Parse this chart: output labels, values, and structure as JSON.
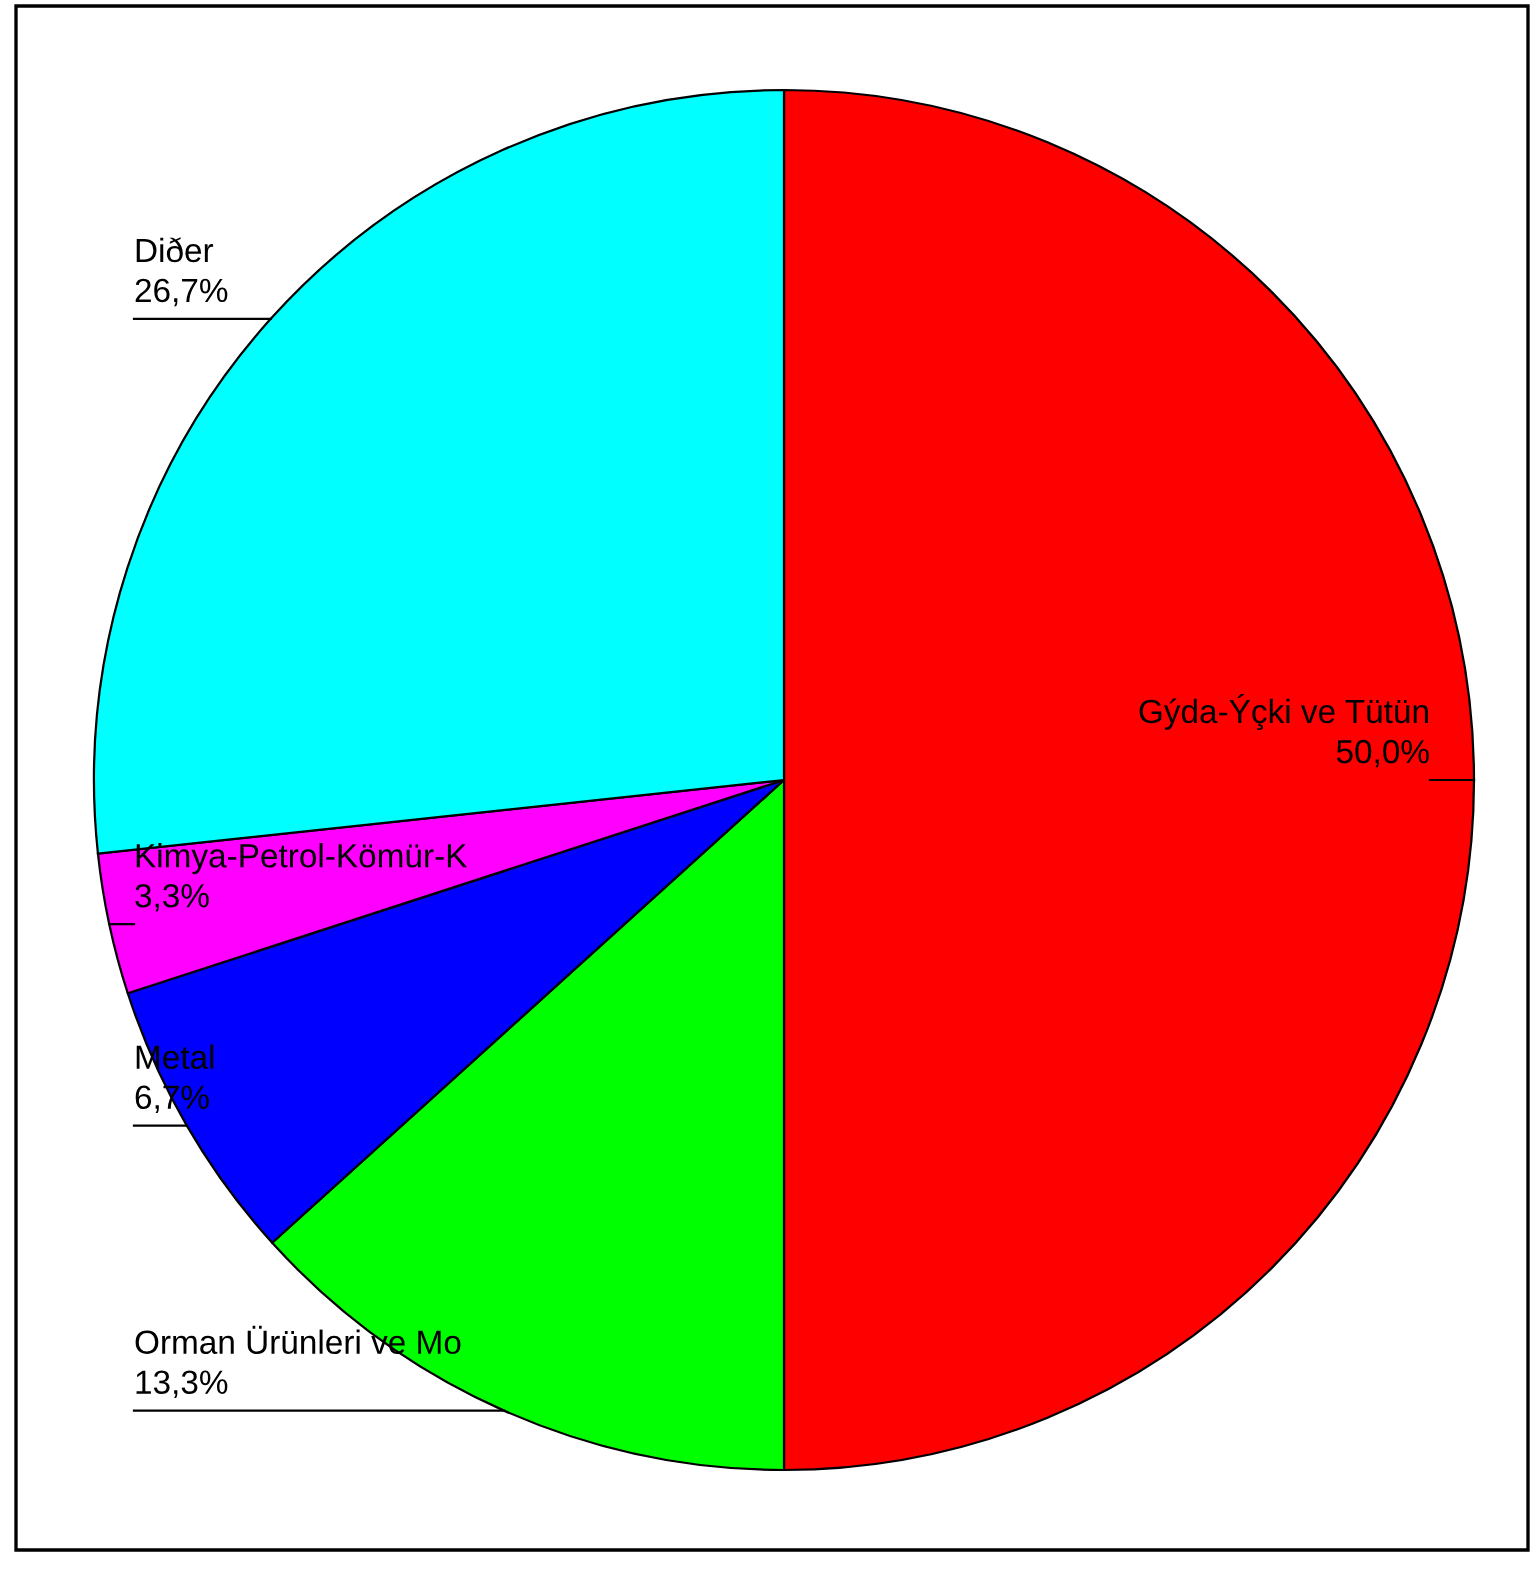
{
  "chart_data": {
    "type": "pie",
    "categories": [
      "Gýda-Ýçki ve Tütün",
      "Orman Ürünleri ve Mo",
      "Metal",
      "Kimya-Petrol-Kömür-K",
      "Diðer"
    ],
    "values": [
      50.0,
      13.3,
      6.7,
      3.3,
      26.7
    ],
    "colors": [
      "#ff0000",
      "#00ff00",
      "#0000ff",
      "#ff00ff",
      "#00ffff"
    ],
    "value_labels": [
      "50,0%",
      "13,3%",
      "6,7%",
      "3,3%",
      "26,7%"
    ],
    "legend": false
  }
}
